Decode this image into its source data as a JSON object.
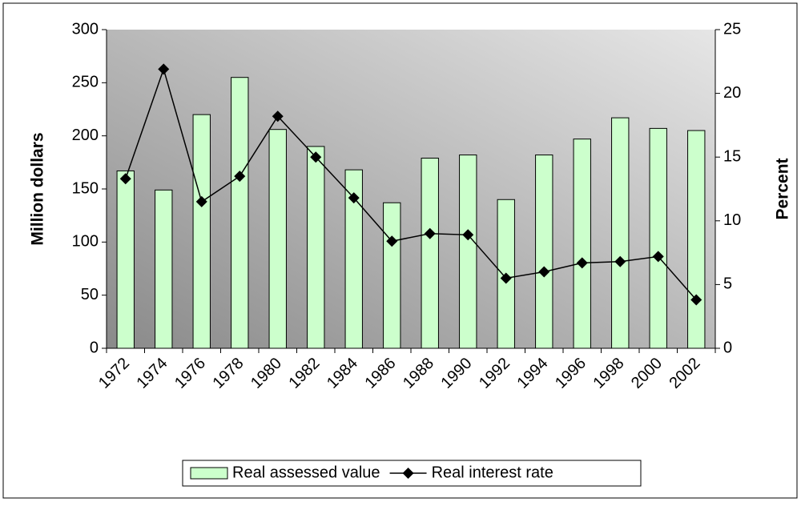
{
  "chart_data": {
    "type": "bar-line",
    "y_label": "Million dollars",
    "y2_label": "Percent",
    "categories": [
      "1972",
      "1974",
      "1976",
      "1978",
      "1980",
      "1982",
      "1984",
      "1986",
      "1988",
      "1990",
      "1992",
      "1994",
      "1996",
      "1998",
      "2000",
      "2002"
    ],
    "series": [
      {
        "name": "Real assessed value",
        "type": "bar",
        "color": "#ccffcc",
        "values": [
          167,
          149,
          220,
          255,
          206,
          190,
          168,
          137,
          179,
          182,
          140,
          182,
          197,
          217,
          207,
          205
        ]
      },
      {
        "name": "Real interest rate",
        "type": "line",
        "axis": "y2",
        "color": "#000000",
        "values": [
          13.3,
          21.9,
          11.5,
          13.5,
          18.2,
          15.0,
          11.8,
          8.4,
          9.0,
          8.9,
          5.5,
          6.0,
          6.7,
          6.8,
          7.2,
          3.8
        ]
      }
    ],
    "ylim": [
      0,
      300
    ],
    "yticks": [
      0,
      50,
      100,
      150,
      200,
      250,
      300
    ],
    "y2lim": [
      0,
      25
    ],
    "y2ticks": [
      0,
      5,
      10,
      15,
      20,
      25
    ],
    "legend": "bottom"
  }
}
